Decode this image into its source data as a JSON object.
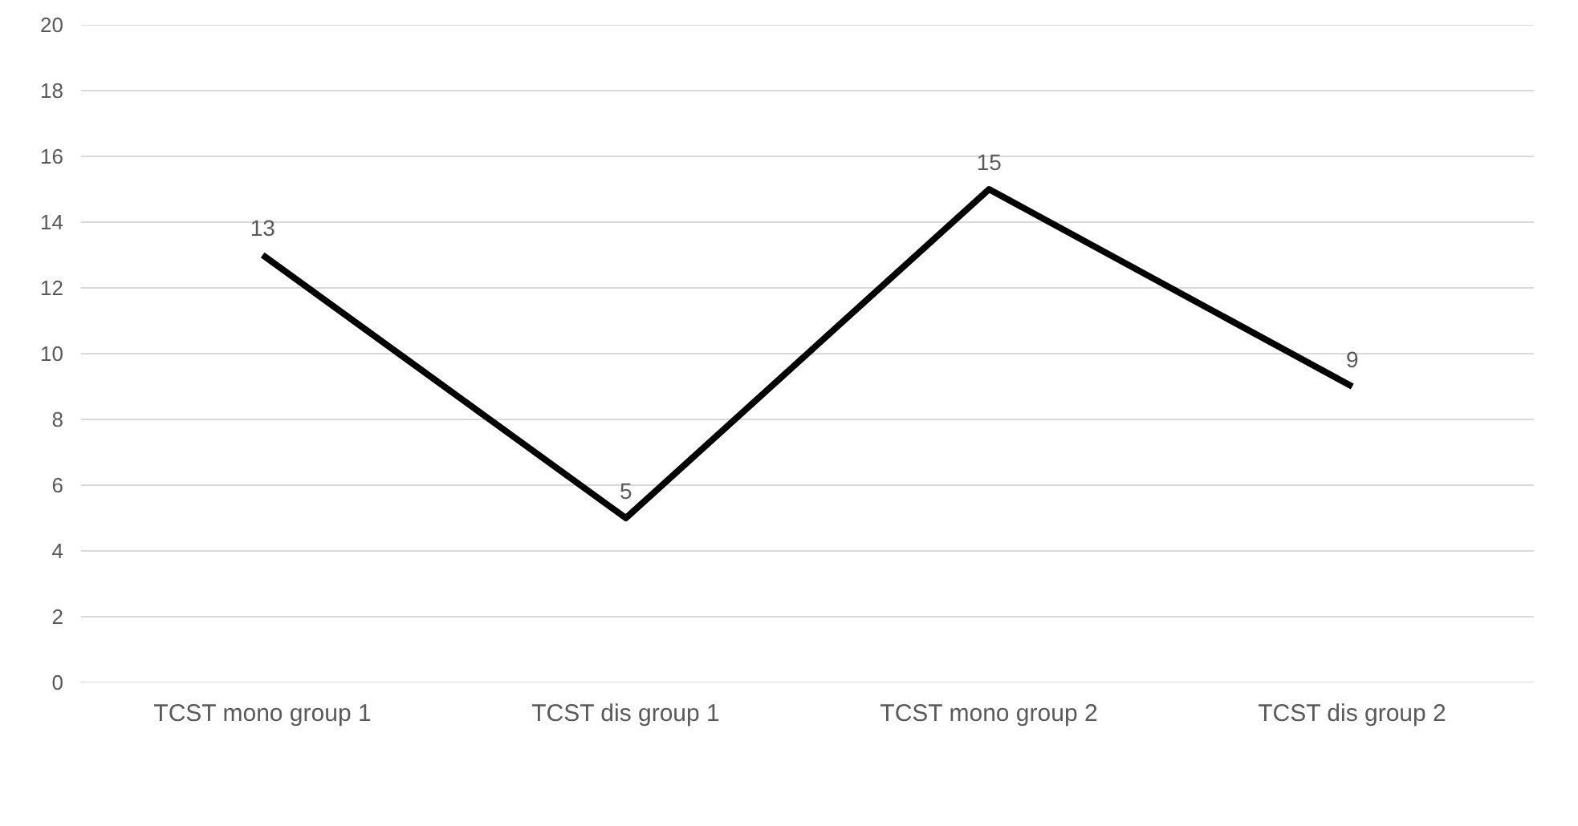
{
  "chart_data": {
    "type": "line",
    "categories": [
      "TCST mono group 1",
      "TCST dis group 1",
      "TCST mono group 2",
      "TCST dis group 2"
    ],
    "series": [
      {
        "color": "#000000",
        "values": [
          13,
          5,
          15,
          9
        ]
      }
    ],
    "ylim": [
      0,
      20
    ],
    "yticks": [
      0,
      2,
      4,
      6,
      8,
      10,
      12,
      14,
      16,
      18,
      20
    ],
    "grid": "y",
    "data_labels": true,
    "marker": "none",
    "line_style": "solid"
  }
}
